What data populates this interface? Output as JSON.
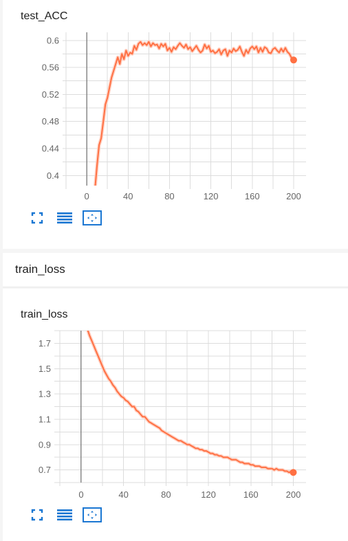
{
  "cards": [
    {
      "title": "test_ACC",
      "toolbar": {
        "fit_icon": "fit-to-domain-icon",
        "data_icon": "data-table-icon",
        "expand_icon": "expand-icon"
      }
    },
    {
      "section_title": "train_loss",
      "title": "train_loss",
      "toolbar": {
        "fit_icon": "fit-to-domain-icon",
        "data_icon": "data-table-icon",
        "expand_icon": "expand-icon"
      }
    }
  ],
  "colors": {
    "line": "#ff7043",
    "line_raw": "#ffccbc",
    "icon": "#1976d2",
    "axis_zero": "#888888"
  },
  "chart_data": [
    {
      "type": "line",
      "title": "test_ACC",
      "xlabel": "",
      "ylabel": "",
      "xlim": [
        -20,
        212
      ],
      "ylim": [
        0.385,
        0.612
      ],
      "xticks": [
        0,
        40,
        80,
        120,
        160,
        200
      ],
      "yticks": [
        0.4,
        0.44,
        0.48,
        0.52,
        0.56,
        0.6
      ],
      "ytick_labels": [
        "0.4",
        "0.44",
        "0.48",
        "0.52",
        "0.56",
        "0.6"
      ],
      "grid": true,
      "series": [
        {
          "x": [
            8,
            10,
            12,
            14,
            16,
            18,
            20,
            22,
            24,
            26,
            28,
            30,
            32,
            34,
            36,
            38,
            40,
            42,
            44,
            46,
            48,
            50,
            52,
            54,
            56,
            58,
            60,
            62,
            64,
            66,
            68,
            70,
            72,
            74,
            76,
            78,
            80,
            82,
            84,
            86,
            88,
            90,
            92,
            94,
            96,
            98,
            100,
            102,
            104,
            106,
            108,
            110,
            112,
            114,
            116,
            118,
            120,
            122,
            124,
            126,
            128,
            130,
            132,
            134,
            136,
            138,
            140,
            142,
            144,
            146,
            148,
            150,
            152,
            154,
            156,
            158,
            160,
            162,
            164,
            166,
            168,
            170,
            172,
            174,
            176,
            178,
            180,
            182,
            184,
            186,
            188,
            190,
            192,
            194,
            196,
            198,
            200
          ],
          "y": [
            0.38,
            0.415,
            0.445,
            0.455,
            0.48,
            0.505,
            0.515,
            0.53,
            0.545,
            0.555,
            0.565,
            0.575,
            0.565,
            0.58,
            0.572,
            0.585,
            0.577,
            0.582,
            0.58,
            0.592,
            0.586,
            0.595,
            0.598,
            0.593,
            0.596,
            0.593,
            0.598,
            0.591,
            0.596,
            0.593,
            0.594,
            0.588,
            0.595,
            0.591,
            0.595,
            0.585,
            0.589,
            0.583,
            0.59,
            0.587,
            0.592,
            0.596,
            0.592,
            0.589,
            0.594,
            0.587,
            0.59,
            0.584,
            0.588,
            0.592,
            0.586,
            0.582,
            0.585,
            0.594,
            0.588,
            0.592,
            0.583,
            0.585,
            0.581,
            0.583,
            0.587,
            0.579,
            0.585,
            0.587,
            0.577,
            0.585,
            0.582,
            0.588,
            0.584,
            0.586,
            0.591,
            0.583,
            0.577,
            0.586,
            0.581,
            0.588,
            0.591,
            0.587,
            0.591,
            0.582,
            0.589,
            0.583,
            0.59,
            0.588,
            0.582,
            0.581,
            0.587,
            0.589,
            0.585,
            0.582,
            0.588,
            0.583,
            0.589,
            0.583,
            0.58,
            0.574,
            0.571
          ]
        }
      ]
    },
    {
      "type": "line",
      "title": "train_loss",
      "xlabel": "",
      "ylabel": "",
      "xlim": [
        -22,
        212
      ],
      "ylim": [
        0.6,
        1.8
      ],
      "xticks": [
        0,
        40,
        80,
        120,
        160,
        200
      ],
      "yticks": [
        0.7,
        0.9,
        1.1,
        1.3,
        1.5,
        1.7
      ],
      "ytick_labels": [
        "0.7",
        "0.9",
        "1.1",
        "1.3",
        "1.5",
        "1.7"
      ],
      "grid": true,
      "series": [
        {
          "x": [
            6,
            8,
            10,
            12,
            14,
            16,
            18,
            20,
            22,
            24,
            26,
            28,
            30,
            32,
            34,
            36,
            38,
            40,
            42,
            44,
            46,
            48,
            50,
            52,
            54,
            56,
            58,
            60,
            62,
            64,
            66,
            68,
            70,
            72,
            74,
            76,
            78,
            80,
            82,
            84,
            86,
            88,
            90,
            92,
            94,
            96,
            98,
            100,
            102,
            104,
            106,
            108,
            110,
            112,
            114,
            116,
            118,
            120,
            122,
            124,
            126,
            128,
            130,
            132,
            134,
            136,
            138,
            140,
            142,
            144,
            146,
            148,
            150,
            152,
            154,
            156,
            158,
            160,
            162,
            164,
            166,
            168,
            170,
            172,
            174,
            176,
            178,
            180,
            182,
            184,
            186,
            188,
            190,
            192,
            194,
            196,
            198,
            200
          ],
          "y": [
            1.81,
            1.76,
            1.72,
            1.68,
            1.64,
            1.6,
            1.56,
            1.52,
            1.48,
            1.45,
            1.42,
            1.4,
            1.37,
            1.35,
            1.32,
            1.3,
            1.28,
            1.27,
            1.25,
            1.24,
            1.22,
            1.2,
            1.2,
            1.17,
            1.16,
            1.14,
            1.12,
            1.12,
            1.1,
            1.08,
            1.07,
            1.06,
            1.05,
            1.04,
            1.03,
            1.01,
            1.0,
            0.99,
            0.98,
            0.97,
            0.96,
            0.95,
            0.94,
            0.93,
            0.93,
            0.92,
            0.91,
            0.9,
            0.9,
            0.89,
            0.88,
            0.87,
            0.87,
            0.86,
            0.86,
            0.85,
            0.85,
            0.84,
            0.83,
            0.83,
            0.82,
            0.82,
            0.81,
            0.81,
            0.8,
            0.8,
            0.8,
            0.79,
            0.78,
            0.78,
            0.78,
            0.77,
            0.76,
            0.76,
            0.75,
            0.75,
            0.75,
            0.74,
            0.74,
            0.73,
            0.73,
            0.73,
            0.72,
            0.72,
            0.72,
            0.71,
            0.71,
            0.71,
            0.7,
            0.71,
            0.7,
            0.7,
            0.7,
            0.69,
            0.69,
            0.68,
            0.69,
            0.68
          ]
        }
      ]
    }
  ]
}
